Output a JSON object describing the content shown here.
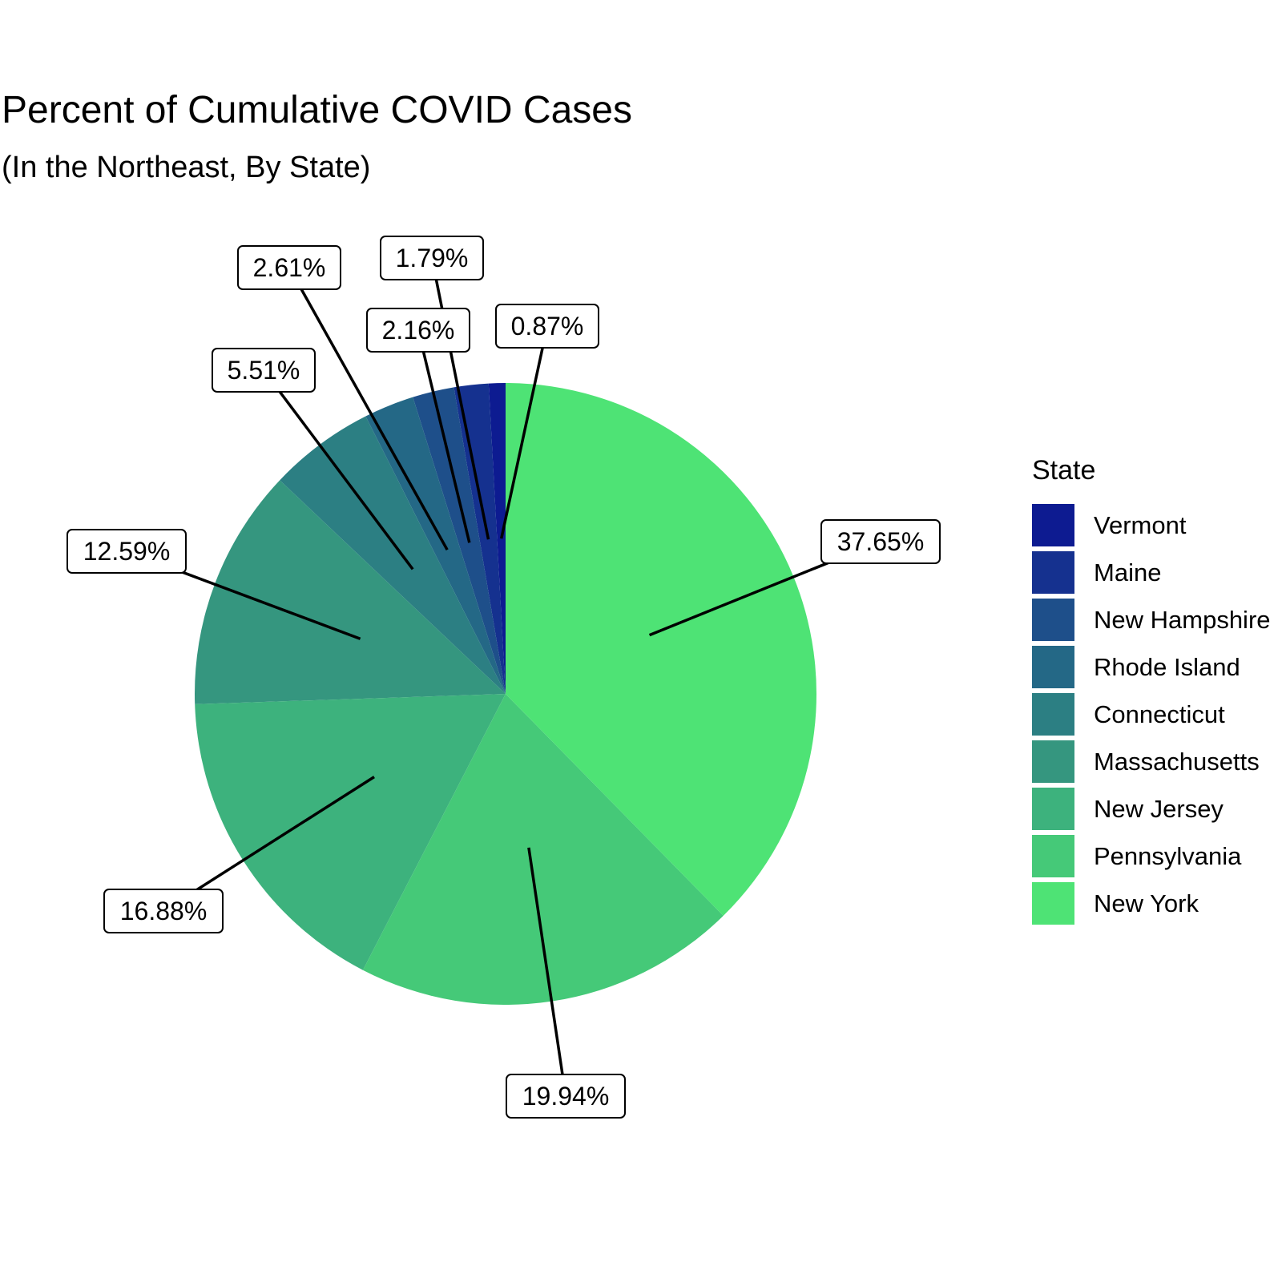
{
  "chart_data": {
    "type": "pie",
    "title": "Percent of Cumulative COVID Cases",
    "subtitle": "(In the Northeast, By State)",
    "legend_title": "State",
    "legend_position": "right",
    "slices": [
      {
        "name": "Vermont",
        "value": 0.87,
        "label": "0.87%",
        "color": "#0d1b91"
      },
      {
        "name": "Maine",
        "value": 1.79,
        "label": "1.79%",
        "color": "#15318f"
      },
      {
        "name": "New Hampshire",
        "value": 2.16,
        "label": "2.16%",
        "color": "#1e4f8a"
      },
      {
        "name": "Rhode Island",
        "value": 2.61,
        "label": "2.61%",
        "color": "#246886"
      },
      {
        "name": "Connecticut",
        "value": 5.51,
        "label": "5.51%",
        "color": "#2c7f83"
      },
      {
        "name": "Massachusetts",
        "value": 12.59,
        "label": "12.59%",
        "color": "#35967f"
      },
      {
        "name": "New Jersey",
        "value": 16.88,
        "label": "16.88%",
        "color": "#3db27d"
      },
      {
        "name": "Pennsylvania",
        "value": 19.94,
        "label": "19.94%",
        "color": "#45c978"
      },
      {
        "name": "New York",
        "value": 37.65,
        "label": "37.65%",
        "color": "#4ee375"
      }
    ]
  }
}
